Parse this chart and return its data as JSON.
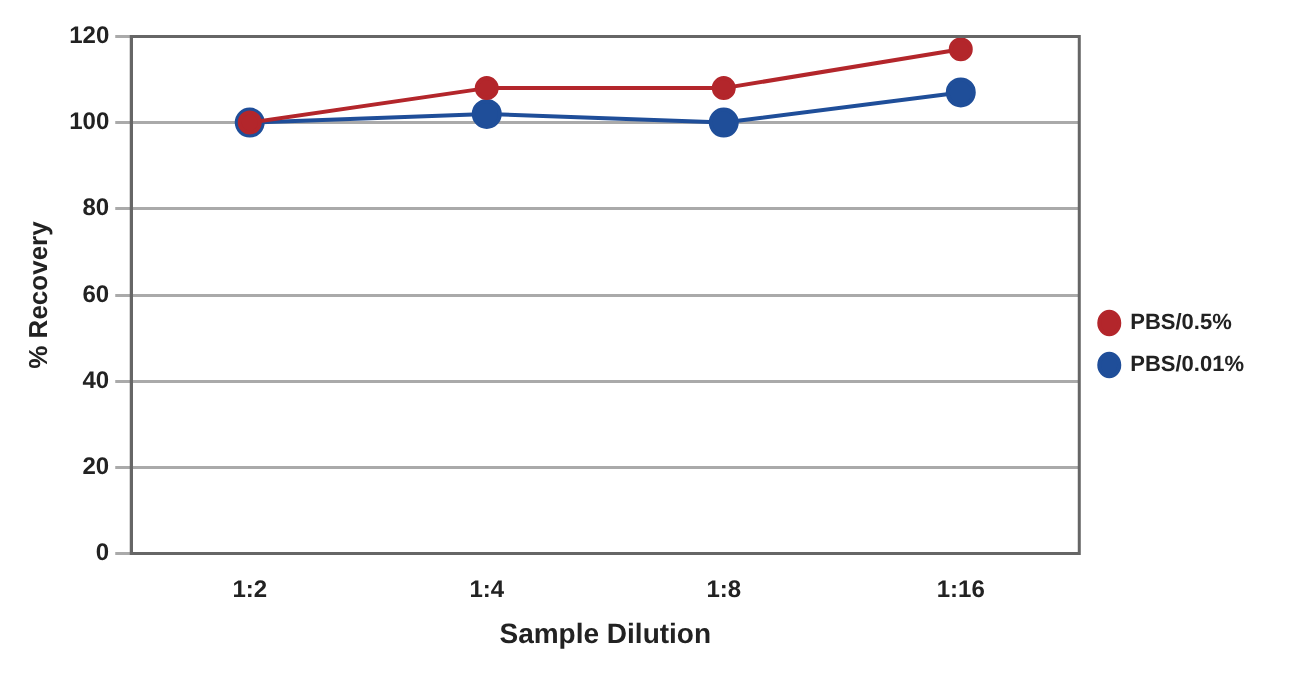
{
  "chart_data": {
    "type": "line",
    "xlabel": "Sample Dilution",
    "ylabel": "% Recovery",
    "categories": [
      "1:2",
      "1:4",
      "1:8",
      "1:16"
    ],
    "series": [
      {
        "name": "PBS/0.01%",
        "color": "#1f4e99",
        "values": [
          100,
          102,
          100,
          107
        ]
      },
      {
        "name": "PBS/0.5%",
        "color": "#b3262b",
        "values": [
          100,
          108,
          108,
          117
        ]
      }
    ],
    "ylim": [
      0,
      120
    ],
    "yticks": [
      0,
      20,
      40,
      60,
      80,
      100,
      120
    ],
    "grid": "y",
    "legend": "right",
    "marker": "circle",
    "line_style": "solid"
  }
}
